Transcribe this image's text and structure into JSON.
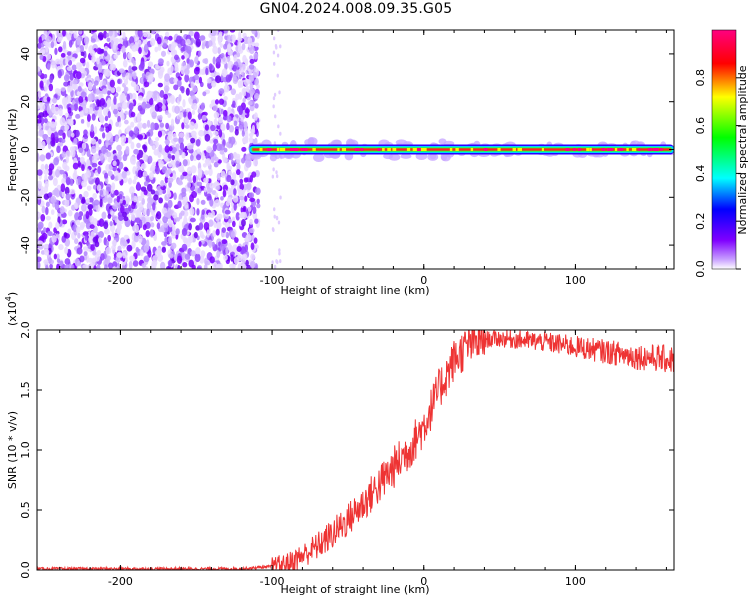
{
  "title": "GN04.2024.008.09.35.G05",
  "chart_data": [
    {
      "type": "heatmap",
      "xlabel": "Height of straight line (km)",
      "ylabel": "Frequency (Hz)",
      "xlim": [
        -255,
        165
      ],
      "ylim": [
        -50,
        50
      ],
      "xticks": [
        -200,
        -100,
        0,
        100
      ],
      "yticks": [
        -40,
        -20,
        0,
        20,
        40
      ],
      "colorbar": {
        "label": "Normalized spectral amplitude",
        "range": [
          0,
          1
        ],
        "ticks": [
          "0.0",
          "0.2",
          "0.4",
          "0.6",
          "0.8"
        ],
        "colors": [
          "#ffffff",
          "#8000ff",
          "#0000ff",
          "#00ffff",
          "#00ff00",
          "#ffff00",
          "#ff0000",
          "#ff0080"
        ]
      },
      "features": {
        "noise_region_x": [
          -255,
          -115
        ],
        "carrier_line_x": [
          -115,
          165
        ],
        "carrier_frequency_hz": 0
      }
    },
    {
      "type": "line",
      "xlabel": "Height of straight line (km)",
      "ylabel": "SNR (10 * v/v)",
      "yscale_label": "(x10",
      "yscale_exp": "4",
      "xlim": [
        -255,
        165
      ],
      "ylim": [
        0,
        2.0
      ],
      "xticks": [
        -200,
        -100,
        0,
        100
      ],
      "yticks": [
        0,
        0.5,
        1.0,
        1.5,
        2.0
      ],
      "ytick_labels": [
        "0.0",
        "0.5",
        "1.0",
        "1.5",
        "2.0"
      ],
      "series": [
        {
          "color": "#ee3333",
          "x": [
            -255,
            -200,
            -150,
            -120,
            -100,
            -90,
            -80,
            -70,
            -60,
            -50,
            -40,
            -30,
            -20,
            -10,
            0,
            10,
            20,
            30,
            40,
            50,
            60,
            70,
            80,
            90,
            100,
            110,
            120,
            130,
            140,
            150,
            165
          ],
          "y": [
            0.01,
            0.01,
            0.01,
            0.01,
            0.03,
            0.05,
            0.12,
            0.2,
            0.3,
            0.42,
            0.55,
            0.7,
            0.85,
            1.0,
            1.2,
            1.5,
            1.75,
            1.88,
            1.92,
            1.93,
            1.92,
            1.91,
            1.9,
            1.88,
            1.86,
            1.84,
            1.82,
            1.8,
            1.78,
            1.77,
            1.75
          ]
        }
      ]
    }
  ]
}
